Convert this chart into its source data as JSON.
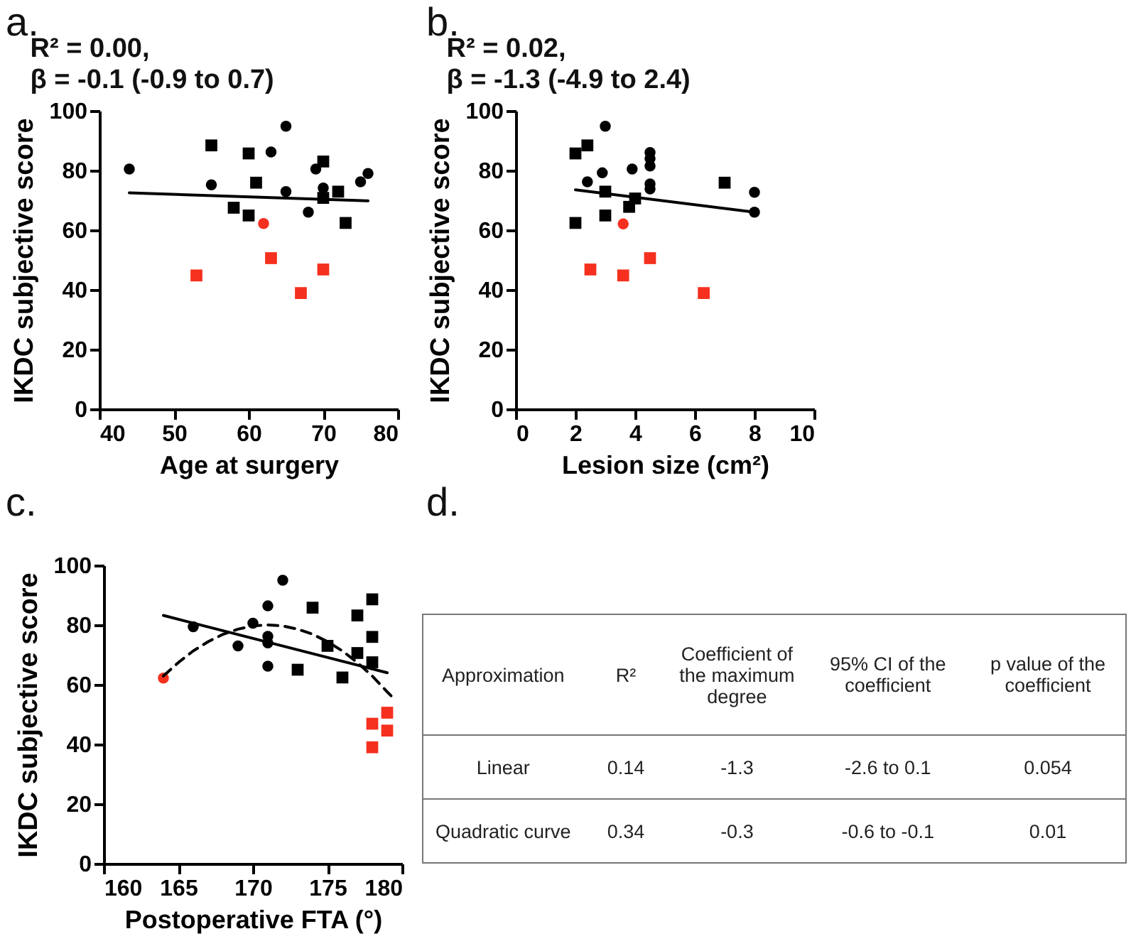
{
  "chart_data": [
    {
      "type": "scatter",
      "title": "a.",
      "annotations": [
        "R² = 0.00,",
        "β = -0.1 (-0.9 to 0.7)"
      ],
      "xlabel": "Age at surgery",
      "ylabel": "IKDC subjective score",
      "xlim": [
        40,
        80
      ],
      "xticks": [
        40,
        50,
        60,
        70,
        80
      ],
      "ylim": [
        0,
        100
      ],
      "yticks": [
        0,
        20,
        40,
        60,
        80,
        100
      ],
      "series": [
        {
          "marker": "circle",
          "color": "#000000",
          "x": [
            44,
            55,
            63,
            65,
            65,
            68,
            69,
            70,
            75,
            76
          ],
          "values": [
            80.5,
            75.2,
            86.2,
            94.8,
            72.9,
            66,
            80.5,
            74.1,
            76.2,
            79
          ]
        },
        {
          "marker": "square",
          "color": "#000000",
          "x": [
            55,
            60,
            61,
            58,
            60,
            70,
            70,
            72,
            73
          ],
          "values": [
            88.4,
            85.7,
            75.9,
            67.5,
            64.9,
            83,
            70.8,
            72.9,
            62.4
          ]
        },
        {
          "marker": "circle",
          "color": "#f5301e",
          "x": [
            62
          ],
          "values": [
            62.2
          ]
        },
        {
          "marker": "square",
          "color": "#f5301e",
          "x": [
            63,
            67,
            70
          ],
          "values": [
            50.6,
            38.9,
            46.8
          ]
        },
        {
          "marker": "square",
          "color": "#f5301e",
          "x": [
            53
          ],
          "values": [
            44.8
          ]
        },
        {
          "type": "line",
          "color": "#000000",
          "x": [
            44,
            76
          ],
          "values": [
            72.5,
            69.8
          ]
        }
      ]
    },
    {
      "type": "scatter",
      "title": "b.",
      "annotations": [
        "R² = 0.02,",
        "β = -1.3 (-4.9 to 2.4)"
      ],
      "xlabel": "Lesion size (cm²)",
      "ylabel": "IKDC subjective score",
      "xlim": [
        0,
        10
      ],
      "xticks": [
        0,
        2,
        4,
        6,
        8,
        10
      ],
      "ylim": [
        0,
        100
      ],
      "yticks": [
        0,
        20,
        40,
        60,
        80,
        100
      ],
      "series": [
        {
          "marker": "circle",
          "color": "#000000",
          "x": [
            3,
            4.5,
            4.5,
            4.5,
            4.5,
            4.5,
            2.4,
            2.9,
            3.9,
            8,
            8
          ],
          "values": [
            94.8,
            86,
            84,
            81.5,
            75.5,
            73.8,
            76.2,
            79.2,
            80.5,
            72.7,
            66
          ]
        },
        {
          "marker": "square",
          "color": "#000000",
          "x": [
            2,
            2.4,
            3,
            3.8,
            4,
            3,
            2,
            7
          ],
          "values": [
            85.7,
            88.4,
            72.9,
            67.8,
            70.6,
            64.9,
            62.4,
            75.9
          ]
        },
        {
          "marker": "circle",
          "color": "#f5301e",
          "x": [
            3.6
          ],
          "values": [
            62.1
          ]
        },
        {
          "marker": "square",
          "color": "#f5301e",
          "x": [
            2.5,
            4.5,
            6.3
          ],
          "values": [
            46.8,
            50.6,
            38.9
          ]
        },
        {
          "marker": "square",
          "color": "#f5301e",
          "x": [
            3.6
          ],
          "values": [
            44.8
          ]
        },
        {
          "type": "line",
          "color": "#000000",
          "x": [
            2,
            8
          ],
          "values": [
            73.5,
            66
          ]
        }
      ]
    },
    {
      "type": "scatter",
      "title": "c.",
      "xlabel": "Postoperative FTA (°)",
      "ylabel": "IKDC subjective score",
      "xlim": [
        160,
        180
      ],
      "xticks": [
        160,
        165,
        170,
        175,
        180
      ],
      "ylim": [
        0,
        100
      ],
      "yticks": [
        0,
        20,
        40,
        60,
        80,
        100
      ],
      "series": [
        {
          "marker": "circle",
          "color": "#000000",
          "x": [
            166,
            169,
            170,
            171,
            171,
            171,
            171,
            172
          ],
          "values": [
            79.4,
            73,
            80.6,
            86.4,
            76.2,
            74,
            66.2,
            95
          ]
        },
        {
          "marker": "square",
          "color": "#000000",
          "x": [
            174,
            173,
            175,
            176,
            177,
            177,
            178,
            178,
            178
          ],
          "values": [
            85.8,
            65,
            73,
            62.4,
            83.2,
            70.6,
            88.6,
            76,
            67.5
          ]
        },
        {
          "marker": "circle",
          "color": "#f5301e",
          "x": [
            164
          ],
          "values": [
            62.2
          ]
        },
        {
          "marker": "square",
          "color": "#f5301e",
          "x": [
            178,
            179,
            178
          ],
          "values": [
            46.9,
            50.6,
            39
          ]
        },
        {
          "marker": "square",
          "color": "#f5301e",
          "x": [
            179
          ],
          "values": [
            44.6
          ]
        },
        {
          "type": "line",
          "color": "#000000",
          "x": [
            164,
            179
          ],
          "values": [
            83.2,
            64
          ]
        },
        {
          "type": "line",
          "line_style": "dashed",
          "color": "#000000",
          "x": [
            164,
            165,
            166,
            167,
            168,
            169,
            170,
            171,
            172,
            173,
            174,
            175,
            176,
            177,
            178,
            179,
            179.5
          ],
          "values": [
            62.9,
            67.4,
            71.3,
            74.4,
            76.9,
            78.6,
            79.7,
            80,
            79.7,
            78.6,
            76.9,
            74.4,
            71.3,
            67.4,
            62.9,
            57.6,
            55
          ]
        }
      ]
    },
    {
      "type": "other",
      "title": "d.",
      "categories": [
        "Approximation",
        "R²",
        "Coefficient of the maximum degree",
        "95% CI of the coefficient",
        "p value of the coefficient"
      ],
      "annotations": [
        "Linear",
        "0.14",
        "-1.3",
        "-2.6 to 0.1",
        "0.054",
        "Quadratic curve",
        "0.34",
        "-0.3",
        "-0.6 to -0.1",
        "0.01"
      ]
    }
  ]
}
